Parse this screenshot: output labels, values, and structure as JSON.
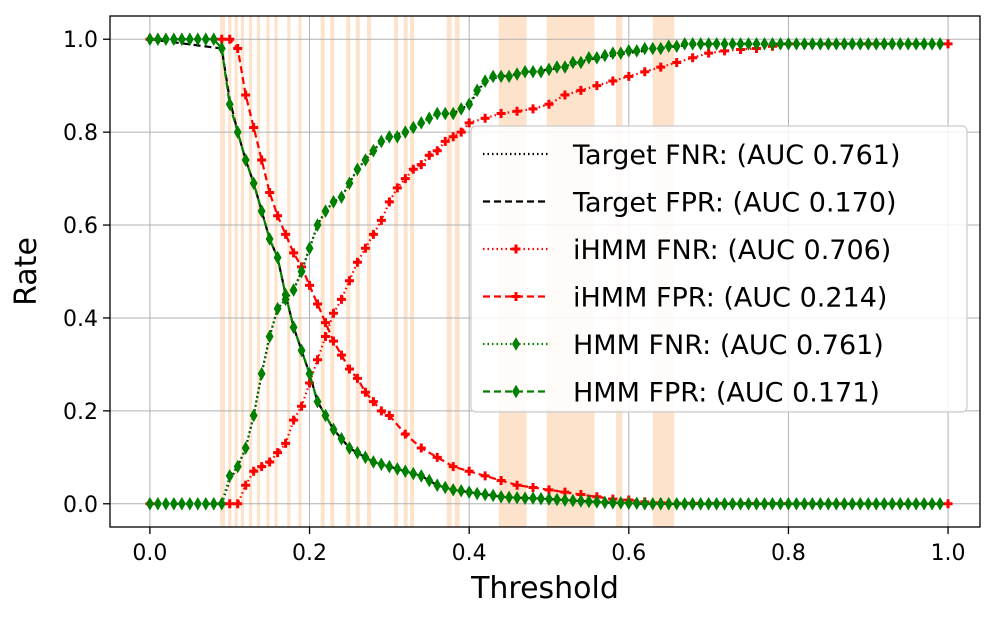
{
  "chart_data": {
    "type": "line",
    "xlabel": "Threshold",
    "ylabel": "Rate",
    "xlim": [
      -0.05,
      1.04
    ],
    "ylim": [
      -0.05,
      1.05
    ],
    "xticks": [
      "0.0",
      "0.2",
      "0.4",
      "0.6",
      "0.8",
      "1.0"
    ],
    "yticks": [
      "0.0",
      "0.2",
      "0.4",
      "0.6",
      "0.8",
      "1.0"
    ],
    "grid": true,
    "legend_position": "center-right",
    "highlight_color": "#fde3cc",
    "highlight_bands": [
      [
        0.088,
        0.094
      ],
      [
        0.098,
        0.102
      ],
      [
        0.106,
        0.11
      ],
      [
        0.114,
        0.118
      ],
      [
        0.124,
        0.128
      ],
      [
        0.134,
        0.138
      ],
      [
        0.146,
        0.15
      ],
      [
        0.156,
        0.16
      ],
      [
        0.172,
        0.176
      ],
      [
        0.186,
        0.19
      ],
      [
        0.214,
        0.219
      ],
      [
        0.226,
        0.231
      ],
      [
        0.246,
        0.251
      ],
      [
        0.258,
        0.263
      ],
      [
        0.272,
        0.277
      ],
      [
        0.306,
        0.311
      ],
      [
        0.318,
        0.323
      ],
      [
        0.326,
        0.331
      ],
      [
        0.372,
        0.378
      ],
      [
        0.382,
        0.388
      ],
      [
        0.437,
        0.472
      ],
      [
        0.497,
        0.557
      ],
      [
        0.584,
        0.592
      ],
      [
        0.63,
        0.657
      ]
    ],
    "series": [
      {
        "name": "Target FNR: (AUC 0.761)",
        "color": "#000000",
        "dash": "dotted",
        "marker": "none",
        "x": [
          0.0,
          0.09,
          0.1,
          0.11,
          0.12,
          0.13,
          0.14,
          0.15,
          0.16,
          0.17,
          0.18,
          0.19,
          0.2,
          0.21,
          0.22,
          0.23,
          0.24,
          0.25,
          0.26,
          0.27,
          0.28,
          0.29,
          0.3,
          0.32,
          0.34,
          0.36,
          0.38,
          0.4,
          0.42,
          0.44,
          0.46,
          0.48,
          0.5,
          0.52,
          0.54,
          0.56,
          0.58,
          0.6,
          0.62,
          0.64,
          0.66,
          0.7,
          0.75,
          0.8,
          1.0
        ],
        "y": [
          0.0,
          0.0,
          0.05,
          0.08,
          0.12,
          0.19,
          0.28,
          0.36,
          0.42,
          0.44,
          0.46,
          0.5,
          0.55,
          0.6,
          0.63,
          0.65,
          0.66,
          0.69,
          0.72,
          0.74,
          0.76,
          0.78,
          0.79,
          0.8,
          0.82,
          0.84,
          0.84,
          0.86,
          0.91,
          0.92,
          0.925,
          0.93,
          0.935,
          0.94,
          0.95,
          0.96,
          0.965,
          0.97,
          0.975,
          0.98,
          0.985,
          0.99,
          0.99,
          0.99,
          0.99
        ]
      },
      {
        "name": "Target FPR: (AUC 0.170)",
        "color": "#000000",
        "dash": "dashed",
        "marker": "none",
        "x": [
          0.0,
          0.09,
          0.1,
          0.11,
          0.12,
          0.13,
          0.14,
          0.15,
          0.16,
          0.17,
          0.18,
          0.19,
          0.2,
          0.21,
          0.22,
          0.23,
          0.24,
          0.25,
          0.26,
          0.27,
          0.28,
          0.3,
          0.32,
          0.34,
          0.36,
          0.38,
          0.4,
          0.42,
          0.44,
          0.46,
          0.48,
          0.5,
          0.52,
          0.54,
          0.56,
          0.58,
          0.6,
          0.62,
          0.64,
          1.0
        ],
        "y": [
          1.0,
          0.98,
          0.87,
          0.8,
          0.74,
          0.69,
          0.63,
          0.57,
          0.53,
          0.45,
          0.38,
          0.33,
          0.28,
          0.22,
          0.19,
          0.16,
          0.14,
          0.12,
          0.11,
          0.1,
          0.09,
          0.08,
          0.07,
          0.06,
          0.04,
          0.03,
          0.025,
          0.02,
          0.015,
          0.013,
          0.012,
          0.01,
          0.008,
          0.006,
          0.004,
          0.002,
          0.001,
          0.0,
          0.0,
          0.0
        ]
      },
      {
        "name": "iHMM FNR: (AUC 0.706)",
        "color": "#ff0000",
        "dash": "dotted",
        "marker": "plus",
        "x": [
          0.0,
          0.09,
          0.1,
          0.11,
          0.12,
          0.13,
          0.14,
          0.15,
          0.16,
          0.17,
          0.18,
          0.19,
          0.2,
          0.21,
          0.22,
          0.23,
          0.24,
          0.25,
          0.26,
          0.27,
          0.28,
          0.29,
          0.3,
          0.31,
          0.32,
          0.33,
          0.34,
          0.35,
          0.36,
          0.37,
          0.38,
          0.39,
          0.4,
          0.42,
          0.44,
          0.46,
          0.48,
          0.5,
          0.52,
          0.54,
          0.56,
          0.58,
          0.6,
          0.62,
          0.64,
          0.66,
          0.68,
          0.7,
          0.72,
          0.74,
          0.76,
          0.78,
          0.8,
          0.85,
          0.9,
          1.0
        ],
        "y": [
          0.0,
          0.0,
          0.0,
          0.0,
          0.04,
          0.07,
          0.08,
          0.09,
          0.11,
          0.13,
          0.18,
          0.21,
          0.26,
          0.31,
          0.36,
          0.41,
          0.44,
          0.48,
          0.52,
          0.55,
          0.58,
          0.61,
          0.65,
          0.68,
          0.7,
          0.72,
          0.73,
          0.75,
          0.76,
          0.78,
          0.79,
          0.8,
          0.82,
          0.83,
          0.84,
          0.845,
          0.85,
          0.86,
          0.88,
          0.89,
          0.9,
          0.91,
          0.92,
          0.93,
          0.94,
          0.95,
          0.96,
          0.97,
          0.975,
          0.978,
          0.98,
          0.985,
          0.99,
          0.99,
          0.99,
          0.99
        ]
      },
      {
        "name": "iHMM FPR: (AUC 0.214)",
        "color": "#ff0000",
        "dash": "dashed",
        "marker": "plus",
        "x": [
          0.0,
          0.09,
          0.1,
          0.11,
          0.12,
          0.13,
          0.14,
          0.15,
          0.16,
          0.17,
          0.18,
          0.19,
          0.2,
          0.21,
          0.22,
          0.23,
          0.24,
          0.25,
          0.26,
          0.27,
          0.28,
          0.29,
          0.3,
          0.32,
          0.34,
          0.36,
          0.38,
          0.4,
          0.42,
          0.44,
          0.46,
          0.48,
          0.5,
          0.52,
          0.54,
          0.56,
          0.58,
          0.6,
          0.62,
          0.64,
          1.0
        ],
        "y": [
          1.0,
          1.0,
          1.0,
          0.98,
          0.88,
          0.81,
          0.74,
          0.67,
          0.62,
          0.58,
          0.54,
          0.51,
          0.47,
          0.43,
          0.39,
          0.35,
          0.32,
          0.29,
          0.27,
          0.24,
          0.22,
          0.2,
          0.19,
          0.15,
          0.12,
          0.1,
          0.08,
          0.07,
          0.06,
          0.05,
          0.04,
          0.035,
          0.03,
          0.025,
          0.02,
          0.015,
          0.01,
          0.008,
          0.004,
          0.002,
          0.0
        ]
      },
      {
        "name": "HMM FNR: (AUC 0.761)",
        "color": "#008000",
        "dash": "dotted",
        "marker": "diamond",
        "x": [
          0.0,
          0.01,
          0.02,
          0.03,
          0.04,
          0.05,
          0.06,
          0.07,
          0.08,
          0.09,
          0.1,
          0.11,
          0.12,
          0.13,
          0.14,
          0.15,
          0.16,
          0.17,
          0.18,
          0.19,
          0.2,
          0.21,
          0.22,
          0.23,
          0.24,
          0.25,
          0.26,
          0.27,
          0.28,
          0.29,
          0.3,
          0.31,
          0.32,
          0.33,
          0.34,
          0.35,
          0.36,
          0.37,
          0.38,
          0.39,
          0.4,
          0.41,
          0.42,
          0.43,
          0.44,
          0.45,
          0.46,
          0.47,
          0.48,
          0.49,
          0.5,
          0.51,
          0.52,
          0.53,
          0.54,
          0.55,
          0.56,
          0.57,
          0.58,
          0.59,
          0.6,
          0.61,
          0.62,
          0.63,
          0.64,
          0.65,
          0.66,
          0.67,
          0.68,
          0.69,
          0.7,
          0.71,
          0.72,
          0.73,
          0.74,
          0.75,
          0.76,
          0.77,
          0.78,
          0.79,
          0.8,
          0.81,
          0.82,
          0.83,
          0.84,
          0.85,
          0.86,
          0.87,
          0.88,
          0.89,
          0.9,
          0.91,
          0.92,
          0.93,
          0.94,
          0.95,
          0.96,
          0.97,
          0.98,
          0.99
        ],
        "y": [
          0.0,
          0.0,
          0.0,
          0.0,
          0.0,
          0.0,
          0.0,
          0.0,
          0.0,
          0.0,
          0.06,
          0.08,
          0.12,
          0.19,
          0.28,
          0.36,
          0.42,
          0.44,
          0.46,
          0.5,
          0.55,
          0.6,
          0.63,
          0.65,
          0.66,
          0.69,
          0.72,
          0.74,
          0.76,
          0.78,
          0.79,
          0.79,
          0.8,
          0.81,
          0.82,
          0.83,
          0.84,
          0.84,
          0.84,
          0.85,
          0.86,
          0.89,
          0.91,
          0.92,
          0.92,
          0.92,
          0.925,
          0.93,
          0.93,
          0.93,
          0.935,
          0.94,
          0.94,
          0.95,
          0.95,
          0.96,
          0.96,
          0.965,
          0.97,
          0.97,
          0.975,
          0.975,
          0.98,
          0.98,
          0.98,
          0.985,
          0.985,
          0.99,
          0.99,
          0.99,
          0.99,
          0.99,
          0.99,
          0.99,
          0.99,
          0.99,
          0.99,
          0.99,
          0.99,
          0.99,
          0.99,
          0.99,
          0.99,
          0.99,
          0.99,
          0.99,
          0.99,
          0.99,
          0.99,
          0.99,
          0.99,
          0.99,
          0.99,
          0.99,
          0.99,
          0.99,
          0.99,
          0.99,
          0.99,
          0.99
        ]
      },
      {
        "name": "HMM FPR: (AUC 0.171)",
        "color": "#008000",
        "dash": "dashed",
        "marker": "diamond",
        "x": [
          0.0,
          0.01,
          0.02,
          0.03,
          0.04,
          0.05,
          0.06,
          0.07,
          0.08,
          0.09,
          0.1,
          0.11,
          0.12,
          0.13,
          0.14,
          0.15,
          0.16,
          0.17,
          0.18,
          0.19,
          0.2,
          0.21,
          0.22,
          0.23,
          0.24,
          0.25,
          0.26,
          0.27,
          0.28,
          0.29,
          0.3,
          0.31,
          0.32,
          0.33,
          0.34,
          0.35,
          0.36,
          0.37,
          0.38,
          0.39,
          0.4,
          0.41,
          0.42,
          0.43,
          0.44,
          0.45,
          0.46,
          0.47,
          0.48,
          0.49,
          0.5,
          0.51,
          0.52,
          0.53,
          0.54,
          0.55,
          0.56,
          0.57,
          0.58,
          0.59,
          0.6,
          0.61,
          0.62,
          0.63,
          0.64,
          0.65,
          0.66,
          0.67,
          0.68,
          0.69,
          0.7,
          0.71,
          0.72,
          0.73,
          0.74,
          0.75,
          0.76,
          0.77,
          0.78,
          0.79,
          0.8,
          0.81,
          0.82,
          0.83,
          0.84,
          0.85,
          0.86,
          0.87,
          0.88,
          0.89,
          0.9,
          0.91,
          0.92,
          0.93,
          0.94,
          0.95,
          0.96,
          0.97,
          0.98,
          0.99
        ],
        "y": [
          1.0,
          1.0,
          1.0,
          1.0,
          1.0,
          1.0,
          1.0,
          1.0,
          1.0,
          0.98,
          0.86,
          0.8,
          0.74,
          0.69,
          0.63,
          0.57,
          0.53,
          0.45,
          0.38,
          0.33,
          0.28,
          0.22,
          0.19,
          0.16,
          0.14,
          0.12,
          0.11,
          0.1,
          0.09,
          0.085,
          0.08,
          0.075,
          0.07,
          0.065,
          0.06,
          0.05,
          0.04,
          0.035,
          0.03,
          0.028,
          0.025,
          0.022,
          0.02,
          0.018,
          0.015,
          0.014,
          0.013,
          0.012,
          0.012,
          0.011,
          0.01,
          0.009,
          0.008,
          0.007,
          0.006,
          0.005,
          0.004,
          0.003,
          0.002,
          0.002,
          0.001,
          0.001,
          0.0,
          0.0,
          0.0,
          0.0,
          0.0,
          0.0,
          0.0,
          0.0,
          0.0,
          0.0,
          0.0,
          0.0,
          0.0,
          0.0,
          0.0,
          0.0,
          0.0,
          0.0,
          0.0,
          0.0,
          0.0,
          0.0,
          0.0,
          0.0,
          0.0,
          0.0,
          0.0,
          0.0,
          0.0,
          0.0,
          0.0,
          0.0,
          0.0,
          0.0,
          0.0,
          0.0,
          0.0,
          0.0
        ]
      }
    ]
  }
}
